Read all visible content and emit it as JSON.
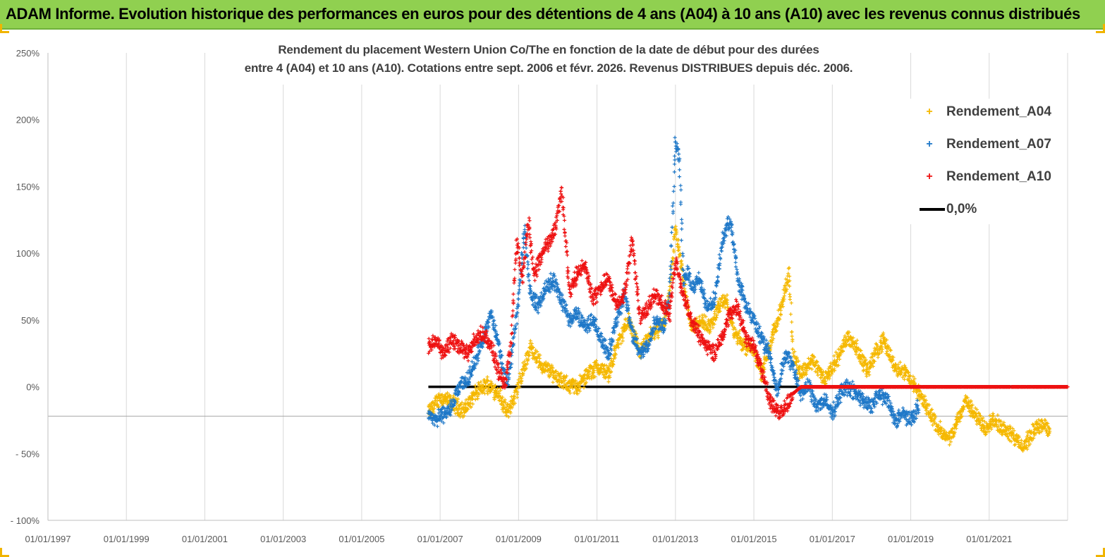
{
  "header": {
    "title": "ADAM Informe. Evolution historique des performances en euros pour des détentions de 4 ans (A04) à 10 ans (A10) avec les revenus connus distribués"
  },
  "colors": {
    "banner": "#90d050",
    "a04": "#f5b800",
    "a07": "#1f78c8",
    "a10": "#ee1111",
    "zero": "#000000",
    "grid": "#d9d9d9"
  },
  "chart_data": {
    "type": "scatter",
    "title_lines": [
      "Rendement du placement Western Union Co/The en fonction de la date de début pour des durées",
      "entre 4 (A04) et 10 ans (A10). Cotations entre sept. 2006 et févr. 2026. Revenus DISTRIBUES depuis déc. 2006."
    ],
    "x_tick_labels": [
      "01/01/1997",
      "01/01/1999",
      "01/01/2001",
      "01/01/2003",
      "01/01/2005",
      "01/01/2007",
      "01/01/2009",
      "01/01/2011",
      "01/01/2013",
      "01/01/2015",
      "01/01/2017",
      "01/01/2019",
      "01/01/2021"
    ],
    "x_tick_years": [
      1997,
      1999,
      2001,
      2003,
      2005,
      2007,
      2009,
      2011,
      2013,
      2015,
      2017,
      2019,
      2021
    ],
    "xlim": [
      1997,
      2023.0
    ],
    "y_tick_labels": [
      "250%",
      "200%",
      "150%",
      "100%",
      "50%",
      "0%",
      "- 50%",
      "- 100%"
    ],
    "y_tick_values": [
      250,
      200,
      150,
      100,
      50,
      0,
      -50,
      -100
    ],
    "ylim": [
      -100,
      250
    ],
    "legend_position": "top-right",
    "series": [
      {
        "name": "Rendement_A04",
        "marker": "+",
        "x": [
          2006.7,
          2007.0,
          2007.3,
          2007.6,
          2007.9,
          2008.2,
          2008.5,
          2008.7,
          2008.9,
          2009.1,
          2009.3,
          2009.6,
          2009.9,
          2010.2,
          2010.5,
          2010.8,
          2011.0,
          2011.3,
          2011.5,
          2011.8,
          2012.1,
          2012.4,
          2012.7,
          2012.85,
          2013.0,
          2013.2,
          2013.4,
          2013.6,
          2013.9,
          2014.1,
          2014.3,
          2014.5,
          2014.8,
          2015.0,
          2015.2,
          2015.5,
          2015.7,
          2015.9,
          2016.0,
          2016.2,
          2016.5,
          2016.8,
          2017.0,
          2017.2,
          2017.4,
          2017.6,
          2017.9,
          2018.1,
          2018.3,
          2018.6,
          2018.9,
          2019.1,
          2019.3,
          2019.6,
          2019.8,
          2020.0,
          2020.2,
          2020.4,
          2020.6,
          2020.9,
          2021.1,
          2021.3,
          2021.6,
          2021.8,
          2022.0,
          2022.2,
          2022.4,
          2022.55
        ],
        "y": [
          -20,
          -8,
          -12,
          -18,
          -5,
          2,
          -5,
          -20,
          -8,
          10,
          30,
          15,
          10,
          2,
          0,
          10,
          15,
          10,
          30,
          50,
          25,
          40,
          45,
          70,
          120,
          80,
          45,
          50,
          45,
          60,
          65,
          40,
          30,
          28,
          10,
          40,
          60,
          85,
          25,
          10,
          20,
          5,
          15,
          25,
          38,
          30,
          12,
          25,
          35,
          15,
          10,
          0,
          -10,
          -25,
          -35,
          -40,
          -25,
          -10,
          -20,
          -30,
          -25,
          -30,
          -35,
          -45,
          -40,
          -30,
          -28,
          -35
        ]
      },
      {
        "name": "Rendement_A07",
        "marker": "+",
        "x": [
          2006.7,
          2006.9,
          2007.1,
          2007.3,
          2007.5,
          2007.7,
          2007.9,
          2008.1,
          2008.3,
          2008.5,
          2008.7,
          2008.85,
          2009.0,
          2009.15,
          2009.3,
          2009.5,
          2009.7,
          2009.9,
          2010.1,
          2010.3,
          2010.5,
          2010.7,
          2010.9,
          2011.1,
          2011.3,
          2011.5,
          2011.7,
          2011.9,
          2012.1,
          2012.3,
          2012.5,
          2012.7,
          2012.85,
          2013.0,
          2013.1,
          2013.2,
          2013.3,
          2013.45,
          2013.6,
          2013.8,
          2014.0,
          2014.2,
          2014.4,
          2014.6,
          2014.8,
          2015.0,
          2015.2,
          2015.4,
          2015.6,
          2015.8,
          2016.0,
          2016.2,
          2016.4,
          2016.6,
          2016.8,
          2017.0,
          2017.2,
          2017.4,
          2017.6,
          2017.8,
          2018.0,
          2018.2,
          2018.4,
          2018.6,
          2018.8,
          2019.0,
          2019.2
        ],
        "y": [
          -20,
          -25,
          -20,
          -15,
          0,
          5,
          20,
          35,
          55,
          30,
          0,
          30,
          65,
          120,
          70,
          60,
          75,
          80,
          65,
          50,
          55,
          45,
          50,
          35,
          25,
          50,
          70,
          40,
          25,
          30,
          50,
          45,
          70,
          185,
          170,
          80,
          85,
          75,
          80,
          60,
          65,
          110,
          125,
          80,
          60,
          50,
          35,
          25,
          -5,
          25,
          15,
          -5,
          0,
          -15,
          -10,
          -20,
          -5,
          0,
          -5,
          -10,
          -15,
          -5,
          -10,
          -25,
          -20,
          -25,
          -15
        ]
      },
      {
        "name": "Rendement_A10",
        "marker": "+",
        "x": [
          2006.7,
          2006.9,
          2007.1,
          2007.3,
          2007.5,
          2007.7,
          2007.9,
          2008.1,
          2008.3,
          2008.5,
          2008.65,
          2008.8,
          2008.95,
          2009.1,
          2009.25,
          2009.4,
          2009.6,
          2009.8,
          2009.95,
          2010.1,
          2010.3,
          2010.5,
          2010.7,
          2010.9,
          2011.1,
          2011.3,
          2011.5,
          2011.7,
          2011.9,
          2012.1,
          2012.3,
          2012.5,
          2012.7,
          2012.85,
          2013.0,
          2013.2,
          2013.4,
          2013.6,
          2013.8,
          2014.0,
          2014.2,
          2014.4,
          2014.6,
          2014.8,
          2015.0,
          2015.2,
          2015.4,
          2015.6,
          2015.8,
          2016.0,
          2016.2,
          2016.6,
          2017.0,
          2017.5,
          2018.0,
          2018.5,
          2019.0,
          2019.5,
          2020.0,
          2020.5,
          2021.0,
          2021.5,
          2022.0,
          2022.5,
          2023.0
        ],
        "y": [
          30,
          35,
          25,
          35,
          30,
          25,
          35,
          40,
          30,
          10,
          0,
          30,
          110,
          80,
          125,
          85,
          100,
          110,
          120,
          150,
          70,
          85,
          90,
          65,
          75,
          80,
          60,
          70,
          110,
          50,
          60,
          70,
          60,
          55,
          95,
          70,
          50,
          40,
          30,
          25,
          40,
          55,
          60,
          35,
          30,
          15,
          -10,
          -20,
          -15,
          -5,
          0,
          0,
          0,
          0,
          0,
          0,
          0,
          0,
          0,
          0,
          0,
          0,
          0,
          0,
          0
        ]
      },
      {
        "name": "0,0%",
        "marker": "line",
        "x": [
          2006.7,
          2023.0
        ],
        "y": [
          0,
          0
        ]
      }
    ]
  }
}
